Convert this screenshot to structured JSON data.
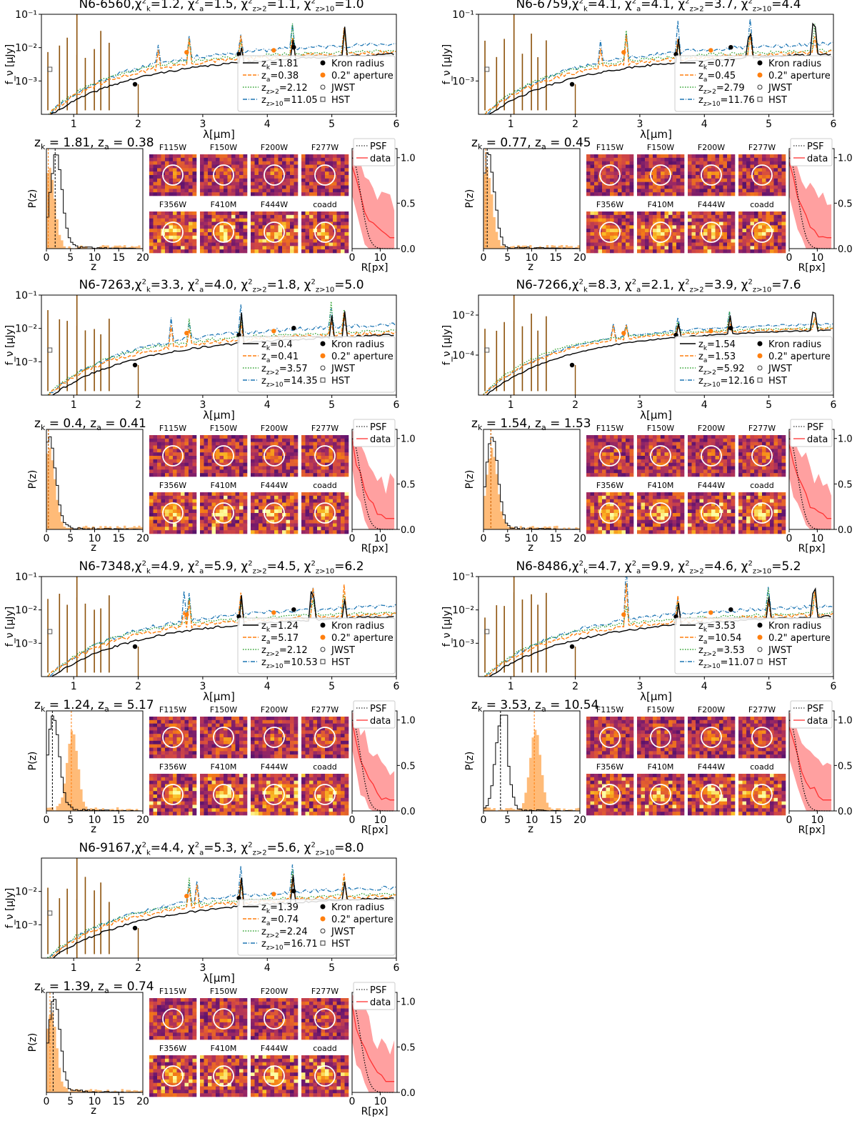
{
  "figure": {
    "xlabel_sed": "λ[μm]",
    "ylabel_sed": "f_ν [μJy]",
    "xlabel_pz": "z",
    "ylabel_pz": "P(z)",
    "xlabel_prof": "R[px]",
    "legend_sed": {
      "kron": "Kron radius",
      "aperture": "0.2\" aperture",
      "jwst": "JWST",
      "hst": "HST"
    },
    "legend_prof": {
      "psf": "PSF",
      "data": "data"
    },
    "filters_top": [
      "F115W",
      "F150W",
      "F200W",
      "F277W"
    ],
    "filters_bottom": [
      "F356W",
      "F410M",
      "F444W",
      "coadd"
    ],
    "colors": {
      "zk": "#000000",
      "za": "#ff7f0e",
      "z2": "#2ca02c",
      "z10": "#1f77b4",
      "hst": "#8c510a",
      "pz_fill": "#ffbb78",
      "profile": "#ff3333",
      "profile_band": "#ff8080"
    }
  },
  "chart_data": [
    {
      "type": "line",
      "id": "N6-6560",
      "chi2": {
        "k": "1.2",
        "a": "1.5",
        "z2": "1.1",
        "z10": "1.0"
      },
      "fits": {
        "zk": "1.81",
        "za": "0.38",
        "z2": "2.12",
        "z10": "11.05"
      },
      "header": {
        "zk": "1.81",
        "za": "0.38"
      },
      "xlim": [
        0.5,
        6
      ],
      "ylim_exp": [
        -4,
        -1
      ],
      "yticks": [
        "10⁻³",
        "10⁻²",
        "10⁻¹"
      ],
      "xticks": [
        "1",
        "2",
        "3",
        "4",
        "5",
        "6"
      ],
      "pz_xticks": [
        "0",
        "5",
        "10",
        "15",
        "20"
      ],
      "prof_xticks": [
        "0",
        "10"
      ],
      "prof_yticks": [
        "0.0",
        "0.5",
        "1.0"
      ]
    },
    {
      "type": "line",
      "id": "N6-6759",
      "chi2": {
        "k": "4.1",
        "a": "4.1",
        "z2": "3.7",
        "z10": "4.4"
      },
      "fits": {
        "zk": "0.77",
        "za": "0.45",
        "z2": "2.79",
        "z10": "11.76"
      },
      "header": {
        "zk": "0.77",
        "za": "0.45"
      },
      "xlim": [
        0.5,
        6
      ],
      "ylim_exp": [
        -4,
        -1
      ],
      "yticks": [
        "10⁻³",
        "10⁻¹"
      ],
      "xticks": [
        "1",
        "2",
        "3",
        "4",
        "5",
        "6"
      ],
      "pz_xticks": [
        "0",
        "5",
        "10",
        "15",
        "20"
      ],
      "prof_xticks": [
        "0",
        "10"
      ],
      "prof_yticks": [
        "0.0",
        "0.5",
        "1.0"
      ]
    },
    {
      "type": "line",
      "id": "N6-7263",
      "chi2": {
        "k": "3.3",
        "a": "4.0",
        "z2": "1.8",
        "z10": "5.0"
      },
      "fits": {
        "zk": "0.4",
        "za": "0.41",
        "z2": "3.57",
        "z10": "14.35"
      },
      "header": {
        "zk": "0.4",
        "za": "0.41"
      },
      "xlim": [
        0.5,
        6
      ],
      "ylim_exp": [
        -4,
        -1
      ],
      "yticks": [
        "10⁻³",
        "10⁻²",
        "10⁻¹"
      ],
      "xticks": [
        "1",
        "2",
        "3",
        "4",
        "5",
        "6"
      ],
      "pz_xticks": [
        "0",
        "5",
        "10",
        "15",
        "20"
      ],
      "prof_xticks": [
        "0",
        "10"
      ],
      "prof_yticks": [
        "0.0",
        "0.5",
        "1.0"
      ]
    },
    {
      "type": "line",
      "id": "N6-7266",
      "chi2": {
        "k": "8.3",
        "a": "2.1",
        "z2": "3.9",
        "z10": "7.6"
      },
      "fits": {
        "zk": "1.54",
        "za": "1.53",
        "z2": "5.92",
        "z10": "12.16"
      },
      "header": {
        "zk": "1.54",
        "za": "1.53"
      },
      "xlim": [
        0.5,
        6
      ],
      "ylim_exp": [
        -6,
        -1
      ],
      "yticks": [
        "10⁻⁴",
        "10⁻²"
      ],
      "xticks": [
        "1",
        "2",
        "3",
        "4",
        "5",
        "6"
      ],
      "pz_xticks": [
        "0",
        "5",
        "10",
        "15",
        "20"
      ],
      "prof_xticks": [
        "0",
        "10"
      ],
      "prof_yticks": [
        "0.0",
        "0.5",
        "1.0"
      ]
    },
    {
      "type": "line",
      "id": "N6-7348",
      "chi2": {
        "k": "4.9",
        "a": "5.9",
        "z2": "4.5",
        "z10": "6.2"
      },
      "fits": {
        "zk": "1.24",
        "za": "5.17",
        "z2": "2.12",
        "z10": "10.53"
      },
      "header": {
        "zk": "1.24",
        "za": "5.17"
      },
      "xlim": [
        0.5,
        6
      ],
      "ylim_exp": [
        -4,
        -1
      ],
      "yticks": [
        "10⁻³",
        "10⁻²",
        "10⁻¹"
      ],
      "xticks": [
        "1",
        "2",
        "3",
        "4",
        "5",
        "6"
      ],
      "pz_xticks": [
        "0",
        "5",
        "10",
        "15",
        "20"
      ],
      "prof_xticks": [
        "0",
        "10"
      ],
      "prof_yticks": [
        "0.0",
        "0.5",
        "1.0"
      ]
    },
    {
      "type": "line",
      "id": "N6-8486",
      "chi2": {
        "k": "4.7",
        "a": "9.9",
        "z2": "4.6",
        "z10": "5.2"
      },
      "fits": {
        "zk": "3.53",
        "za": "10.54",
        "z2": "3.53",
        "z10": "11.07"
      },
      "header": {
        "zk": "3.53",
        "za": "10.54"
      },
      "xlim": [
        0.5,
        6
      ],
      "ylim_exp": [
        -4,
        -1
      ],
      "yticks": [
        "10⁻³",
        "10⁻²",
        "10⁻¹"
      ],
      "xticks": [
        "1",
        "2",
        "3",
        "4",
        "5",
        "6"
      ],
      "pz_xticks": [
        "0",
        "5",
        "10",
        "15",
        "20"
      ],
      "prof_xticks": [
        "0",
        "10"
      ],
      "prof_yticks": [
        "0.0",
        "0.5",
        "1.0"
      ]
    },
    {
      "type": "line",
      "id": "N6-9167",
      "chi2": {
        "k": "4.4",
        "a": "5.3",
        "z2": "5.6",
        "z10": "8.0"
      },
      "fits": {
        "zk": "1.39",
        "za": "0.74",
        "z2": "2.24",
        "z10": "16.71"
      },
      "header": {
        "zk": "1.39",
        "za": "0.74"
      },
      "xlim": [
        0.5,
        6
      ],
      "ylim_exp": [
        -4,
        -1
      ],
      "yticks": [
        "10⁻³",
        "10⁻²"
      ],
      "xticks": [
        "1",
        "2",
        "3",
        "4",
        "5",
        "6"
      ],
      "pz_xticks": [
        "0",
        "5",
        "10",
        "15",
        "20"
      ],
      "prof_xticks": [
        "0",
        "10"
      ],
      "prof_yticks": [
        "0.0",
        "0.5",
        "1.0"
      ]
    }
  ]
}
